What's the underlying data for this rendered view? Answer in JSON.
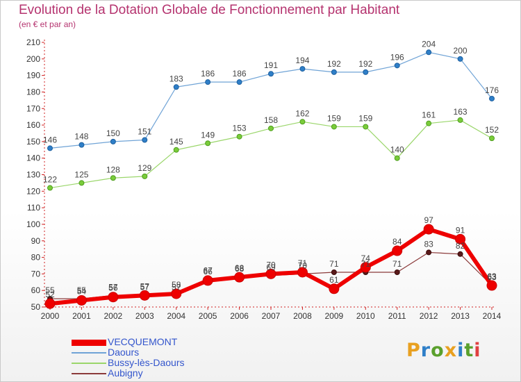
{
  "title": "Evolution de la Dotation Globale de Fonctionnement par Habitant",
  "subtitle": "(en € et par an)",
  "logo": {
    "text": "Proxiti",
    "colors": [
      "#e8a020",
      "#2f7fc8",
      "#5aa02c",
      "#e8a020",
      "#2f7fc8",
      "#5aa02c",
      "#e04040"
    ]
  },
  "chart_data": {
    "type": "line",
    "title": "Evolution de la Dotation Globale de Fonctionnement par Habitant",
    "subtitle": "(en € et par an)",
    "xlabel": "",
    "ylabel": "",
    "x": [
      "2000",
      "2001",
      "2002",
      "2003",
      "2004",
      "2005",
      "2006",
      "2007",
      "2008",
      "2009",
      "2010",
      "2011",
      "2012",
      "2013",
      "2014"
    ],
    "ylim": [
      50,
      210
    ],
    "yticks": [
      50,
      60,
      70,
      80,
      90,
      100,
      110,
      120,
      130,
      140,
      150,
      160,
      170,
      180,
      190,
      200,
      210
    ],
    "grid": false,
    "legend_position": "bottom-left",
    "series": [
      {
        "name": "VECQUEMONT",
        "color": "#ee0000",
        "values": [
          52,
          54,
          56,
          57,
          58,
          66,
          68,
          70,
          71,
          61,
          74,
          84,
          97,
          91,
          63
        ]
      },
      {
        "name": "Daours",
        "color": "#6fa3d6",
        "values": [
          146,
          148,
          150,
          151,
          183,
          186,
          186,
          191,
          194,
          192,
          192,
          196,
          204,
          200,
          176
        ]
      },
      {
        "name": "Bussy-lès-Daours",
        "color": "#9ad66a",
        "values": [
          122,
          125,
          128,
          129,
          145,
          149,
          153,
          158,
          162,
          159,
          159,
          140,
          161,
          163,
          152
        ]
      },
      {
        "name": "Aubigny",
        "color": "#8b3a3a",
        "values": [
          55,
          55,
          57,
          57,
          57,
          67,
          68,
          69,
          70,
          71,
          71,
          71,
          83,
          82,
          63
        ]
      }
    ]
  }
}
